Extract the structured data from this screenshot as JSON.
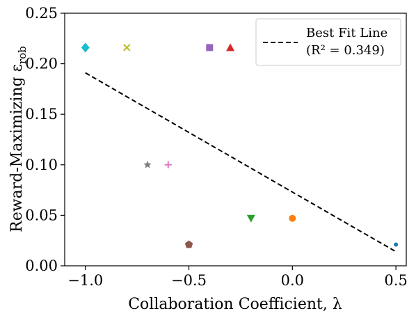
{
  "chart_data": {
    "type": "scatter",
    "title": "",
    "xlabel": "Collaboration Coefficient, λ",
    "ylabel": "Reward-Maximizing ε",
    "ylabel_subscript": "rob",
    "xlim": [
      -1.1,
      0.55
    ],
    "ylim": [
      0.0,
      0.25
    ],
    "xticks": [
      -1.0,
      -0.5,
      0.0,
      0.5
    ],
    "xtick_labels": [
      "−1.0",
      "−0.5",
      "0.0",
      "0.5"
    ],
    "yticks": [
      0.0,
      0.05,
      0.1,
      0.15,
      0.2,
      0.25
    ],
    "ytick_labels": [
      "0.00",
      "0.05",
      "0.10",
      "0.15",
      "0.20",
      "0.25"
    ],
    "grid": false,
    "legend_position": "top-right",
    "points": [
      {
        "x": 0.5,
        "y": 0.021,
        "marker": "circle-small",
        "color": "#1f77b4"
      },
      {
        "x": 0.0,
        "y": 0.047,
        "marker": "circle",
        "color": "#ff7f0e"
      },
      {
        "x": -0.2,
        "y": 0.047,
        "marker": "triangle-down",
        "color": "#2ca02c"
      },
      {
        "x": -0.3,
        "y": 0.216,
        "marker": "triangle-up",
        "color": "#d62728"
      },
      {
        "x": -0.4,
        "y": 0.216,
        "marker": "square",
        "color": "#9467bd"
      },
      {
        "x": -0.5,
        "y": 0.021,
        "marker": "pentagon",
        "color": "#8c564b"
      },
      {
        "x": -0.6,
        "y": 0.1,
        "marker": "plus",
        "color": "#e377c2"
      },
      {
        "x": -0.7,
        "y": 0.1,
        "marker": "star",
        "color": "#7f7f7f"
      },
      {
        "x": -0.8,
        "y": 0.216,
        "marker": "x",
        "color": "#bcbd22"
      },
      {
        "x": -1.0,
        "y": 0.216,
        "marker": "diamond",
        "color": "#17becf"
      }
    ],
    "fit_line": {
      "name": "Best Fit Line",
      "r2_label": "(R² = 0.349)",
      "x": [
        -1.0,
        0.5
      ],
      "y": [
        0.191,
        0.014
      ],
      "color": "#000000",
      "style": "dashed"
    }
  }
}
